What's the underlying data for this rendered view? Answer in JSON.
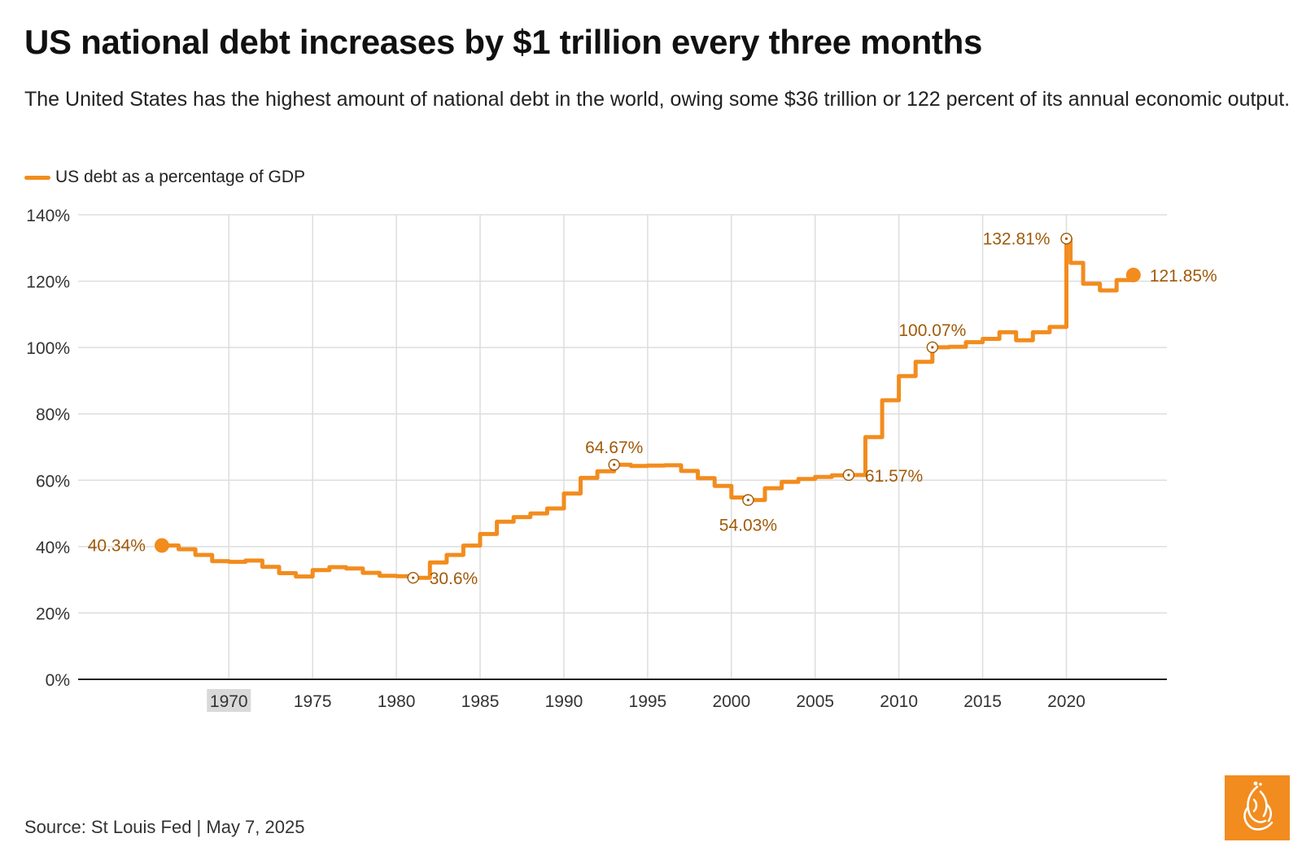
{
  "title": "US national debt increases by $1 trillion every three months",
  "subtitle": "The United States has the highest amount of national debt in the world, owing some $36 trillion or 122 percent of its annual economic output.",
  "source": "Source: St Louis Fed | May 7, 2025",
  "colors": {
    "series": "#F28C1E",
    "annotation": "#A05A0A",
    "grid": "#DDDDDD",
    "axis": "#222222",
    "tick_label": "#333333",
    "highlight_tick_bg": "#D9D9D9",
    "logo_bg": "#F28C1E"
  },
  "logo": {
    "icon": "al-jazeera-logo-icon"
  },
  "chart_data": {
    "type": "line",
    "step": true,
    "series": [
      {
        "name": "US debt as a percentage of GDP",
        "points": [
          [
            1966.0,
            40.34
          ],
          [
            1967.0,
            39.2
          ],
          [
            1968.0,
            37.5
          ],
          [
            1969.0,
            35.6
          ],
          [
            1970.0,
            35.4
          ],
          [
            1971.0,
            35.8
          ],
          [
            1972.0,
            33.9
          ],
          [
            1973.0,
            32.0
          ],
          [
            1974.0,
            31.0
          ],
          [
            1975.0,
            32.9
          ],
          [
            1976.0,
            33.8
          ],
          [
            1977.0,
            33.4
          ],
          [
            1978.0,
            32.1
          ],
          [
            1979.0,
            31.2
          ],
          [
            1980.0,
            31.1
          ],
          [
            1981.0,
            30.6
          ],
          [
            1982.0,
            35.2
          ],
          [
            1983.0,
            37.5
          ],
          [
            1984.0,
            40.3
          ],
          [
            1985.0,
            43.8
          ],
          [
            1986.0,
            47.5
          ],
          [
            1987.0,
            48.9
          ],
          [
            1988.0,
            50.0
          ],
          [
            1989.0,
            51.5
          ],
          [
            1990.0,
            56.0
          ],
          [
            1991.0,
            60.7
          ],
          [
            1992.0,
            62.7
          ],
          [
            1993.0,
            64.67
          ],
          [
            1994.0,
            64.3
          ],
          [
            1995.0,
            64.4
          ],
          [
            1996.0,
            64.5
          ],
          [
            1997.0,
            62.8
          ],
          [
            1998.0,
            60.6
          ],
          [
            1999.0,
            58.3
          ],
          [
            2000.0,
            54.8
          ],
          [
            2001.0,
            54.03
          ],
          [
            2002.0,
            57.6
          ],
          [
            2003.0,
            59.5
          ],
          [
            2004.0,
            60.4
          ],
          [
            2005.0,
            61.0
          ],
          [
            2006.0,
            61.5
          ],
          [
            2007.0,
            61.57
          ],
          [
            2008.0,
            73.0
          ],
          [
            2009.0,
            84.1
          ],
          [
            2010.0,
            91.4
          ],
          [
            2011.0,
            95.7
          ],
          [
            2012.0,
            100.07
          ],
          [
            2013.0,
            100.2
          ],
          [
            2014.0,
            101.6
          ],
          [
            2015.0,
            102.6
          ],
          [
            2016.0,
            104.6
          ],
          [
            2017.0,
            102.2
          ],
          [
            2018.0,
            104.6
          ],
          [
            2019.0,
            106.2
          ],
          [
            2020.0,
            132.81
          ],
          [
            2020.25,
            125.5
          ],
          [
            2021.0,
            119.2
          ],
          [
            2022.0,
            117.2
          ],
          [
            2023.0,
            120.3
          ],
          [
            2024.0,
            121.85
          ]
        ]
      }
    ],
    "annotations": [
      {
        "x": 1966.0,
        "y": 40.34,
        "label": "40.34%",
        "position": "left",
        "marker": "filled"
      },
      {
        "x": 1981.0,
        "y": 30.6,
        "label": "30.6%",
        "position": "right",
        "marker": "ring"
      },
      {
        "x": 1993.0,
        "y": 64.67,
        "label": "64.67%",
        "position": "top",
        "marker": "ring"
      },
      {
        "x": 2001.0,
        "y": 54.03,
        "label": "54.03%",
        "position": "bottom",
        "marker": "ring"
      },
      {
        "x": 2007.0,
        "y": 61.57,
        "label": "61.57%",
        "position": "right",
        "marker": "ring"
      },
      {
        "x": 2012.0,
        "y": 100.07,
        "label": "100.07%",
        "position": "top",
        "marker": "ring"
      },
      {
        "x": 2020.0,
        "y": 132.81,
        "label": "132.81%",
        "position": "left",
        "marker": "ring"
      },
      {
        "x": 2024.0,
        "y": 121.85,
        "label": "121.85%",
        "position": "right",
        "marker": "filled"
      }
    ],
    "x_ticks": [
      1970,
      1975,
      1980,
      1985,
      1990,
      1995,
      2000,
      2005,
      2010,
      2015,
      2020
    ],
    "x_tick_labels": [
      "1970",
      "1975",
      "1980",
      "1985",
      "1990",
      "1995",
      "2000",
      "2005",
      "2010",
      "2015",
      "2020"
    ],
    "highlighted_x_tick": "1970",
    "y_ticks": [
      0,
      20,
      40,
      60,
      80,
      100,
      120,
      140
    ],
    "y_tick_labels": [
      "0%",
      "20%",
      "40%",
      "60%",
      "80%",
      "100%",
      "120%",
      "140%"
    ],
    "xlim": [
      1961,
      2026
    ],
    "ylim": [
      0,
      140
    ],
    "grid": true,
    "legend": "top-left"
  }
}
